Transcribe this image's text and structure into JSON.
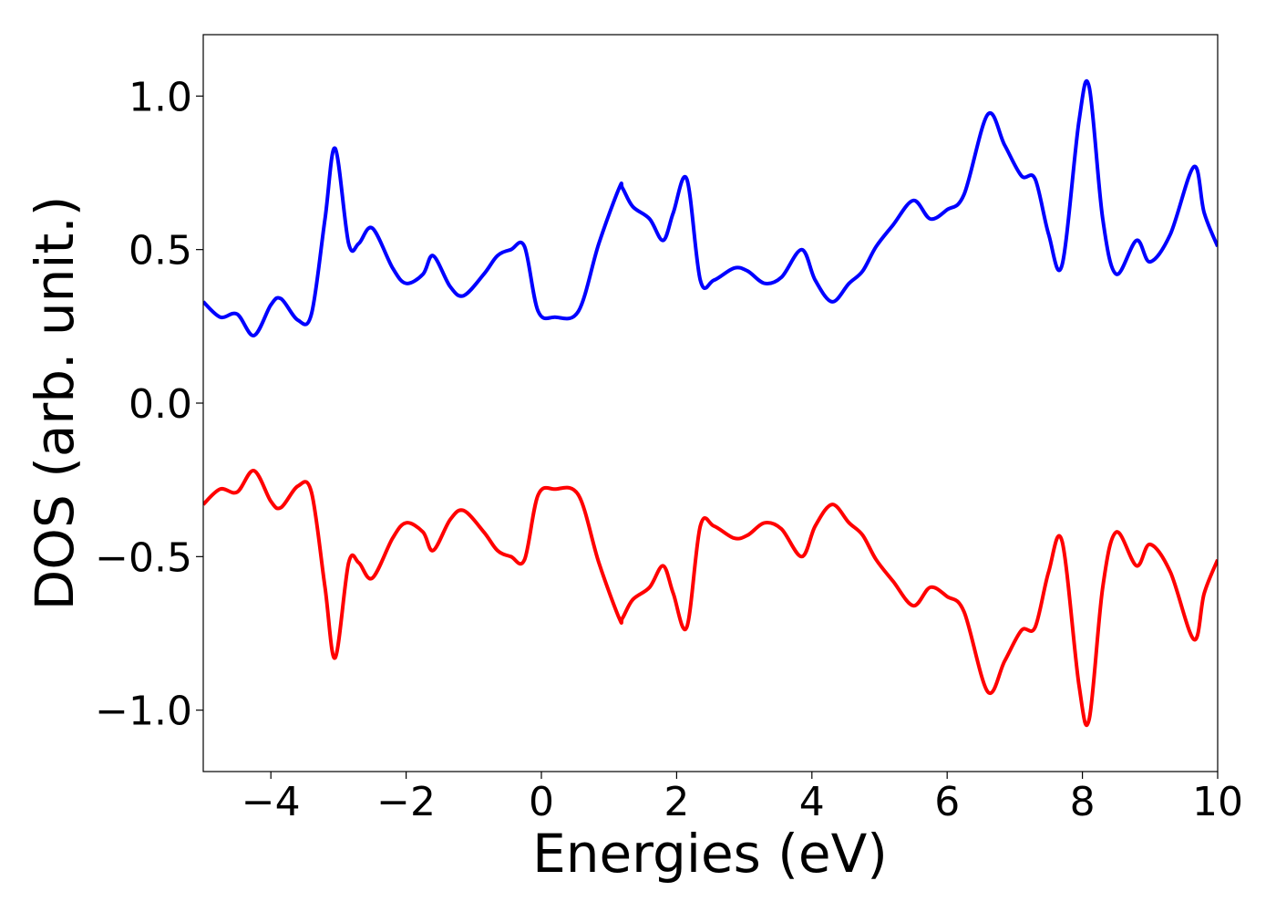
{
  "chart_data": {
    "type": "line",
    "title": "",
    "xlabel": "Energies (eV)",
    "ylabel": "DOS (arb. unit.)",
    "xlim": [
      -5,
      10
    ],
    "ylim": [
      -1.2,
      1.2
    ],
    "x_ticks": [
      -4,
      -2,
      0,
      2,
      4,
      6,
      8,
      10
    ],
    "x_tick_labels": [
      "−4",
      "−2",
      "0",
      "2",
      "4",
      "6",
      "8",
      "10"
    ],
    "y_ticks": [
      1.0,
      0.5,
      0.0,
      -0.5,
      -1.0
    ],
    "y_tick_labels": [
      "1.0",
      "0.5",
      "0.0",
      "−0.5",
      "−1.0"
    ],
    "grid": false,
    "legend": false,
    "series": [
      {
        "color": "#0000ff",
        "x": [
          -5.0,
          -4.75,
          -4.5,
          -4.25,
          -4.0,
          -3.85,
          -3.6,
          -3.4,
          -3.2,
          -3.05,
          -2.85,
          -2.7,
          -2.5,
          -2.2,
          -2.0,
          -1.75,
          -1.6,
          -1.35,
          -1.15,
          -0.85,
          -0.65,
          -0.45,
          -0.25,
          -0.05,
          0.2,
          0.55,
          0.85,
          1.15,
          1.2,
          1.35,
          1.6,
          1.8,
          1.95,
          2.15,
          2.35,
          2.55,
          2.85,
          3.05,
          3.3,
          3.55,
          3.85,
          4.05,
          4.3,
          4.55,
          4.75,
          4.95,
          5.2,
          5.5,
          5.75,
          6.0,
          6.25,
          6.6,
          6.85,
          7.1,
          7.3,
          7.5,
          7.7,
          7.95,
          8.1,
          8.3,
          8.5,
          8.8,
          9.0,
          9.3,
          9.65,
          9.8,
          10.0
        ],
        "values": [
          0.33,
          0.28,
          0.29,
          0.22,
          0.32,
          0.34,
          0.27,
          0.29,
          0.6,
          0.83,
          0.52,
          0.52,
          0.57,
          0.44,
          0.39,
          0.42,
          0.48,
          0.38,
          0.35,
          0.42,
          0.48,
          0.5,
          0.51,
          0.3,
          0.28,
          0.3,
          0.52,
          0.7,
          0.7,
          0.64,
          0.6,
          0.53,
          0.62,
          0.73,
          0.4,
          0.4,
          0.44,
          0.43,
          0.39,
          0.41,
          0.5,
          0.4,
          0.33,
          0.39,
          0.43,
          0.51,
          0.58,
          0.66,
          0.6,
          0.63,
          0.68,
          0.94,
          0.84,
          0.74,
          0.73,
          0.55,
          0.45,
          0.92,
          1.03,
          0.6,
          0.42,
          0.53,
          0.46,
          0.55,
          0.77,
          0.62,
          0.51
        ]
      },
      {
        "color": "#ff0000",
        "x": [
          -5.0,
          -4.75,
          -4.5,
          -4.25,
          -4.0,
          -3.85,
          -3.6,
          -3.4,
          -3.2,
          -3.05,
          -2.85,
          -2.7,
          -2.5,
          -2.2,
          -2.0,
          -1.75,
          -1.6,
          -1.35,
          -1.15,
          -0.85,
          -0.65,
          -0.45,
          -0.25,
          -0.05,
          0.2,
          0.55,
          0.85,
          1.15,
          1.2,
          1.35,
          1.6,
          1.8,
          1.95,
          2.15,
          2.35,
          2.55,
          2.85,
          3.05,
          3.3,
          3.55,
          3.85,
          4.05,
          4.3,
          4.55,
          4.75,
          4.95,
          5.2,
          5.5,
          5.75,
          6.0,
          6.25,
          6.6,
          6.85,
          7.1,
          7.3,
          7.5,
          7.7,
          7.95,
          8.1,
          8.3,
          8.5,
          8.8,
          9.0,
          9.3,
          9.65,
          9.8,
          10.0
        ],
        "values": [
          -0.33,
          -0.28,
          -0.29,
          -0.22,
          -0.32,
          -0.34,
          -0.27,
          -0.29,
          -0.6,
          -0.83,
          -0.52,
          -0.52,
          -0.57,
          -0.44,
          -0.39,
          -0.42,
          -0.48,
          -0.38,
          -0.35,
          -0.42,
          -0.48,
          -0.5,
          -0.51,
          -0.3,
          -0.28,
          -0.3,
          -0.52,
          -0.7,
          -0.7,
          -0.64,
          -0.6,
          -0.53,
          -0.62,
          -0.73,
          -0.4,
          -0.4,
          -0.44,
          -0.43,
          -0.39,
          -0.41,
          -0.5,
          -0.4,
          -0.33,
          -0.39,
          -0.43,
          -0.51,
          -0.58,
          -0.66,
          -0.6,
          -0.63,
          -0.68,
          -0.94,
          -0.84,
          -0.74,
          -0.73,
          -0.55,
          -0.45,
          -0.92,
          -1.03,
          -0.6,
          -0.42,
          -0.53,
          -0.46,
          -0.55,
          -0.77,
          -0.62,
          -0.51
        ]
      }
    ]
  }
}
